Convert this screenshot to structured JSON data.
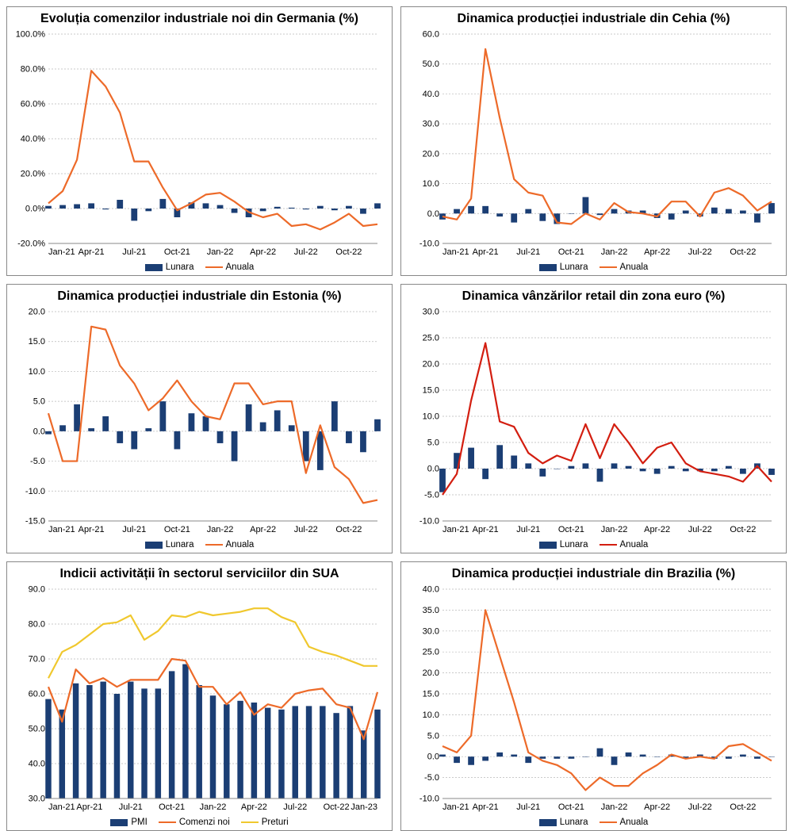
{
  "x_labels": [
    "Jan-21",
    "Apr-21",
    "Jul-21",
    "Oct-21",
    "Jan-22",
    "Apr-22",
    "Jul-22",
    "Oct-22"
  ],
  "x_labels_ext": [
    "Jan-21",
    "Apr-21",
    "Jul-21",
    "Oct-21",
    "Jan-22",
    "Apr-22",
    "Jul-22",
    "Oct-22",
    "Jan-23"
  ],
  "n_months": 24,
  "colors": {
    "bar": "#1b3e74",
    "line_orange": "#ed6a29",
    "line_red": "#d31e10",
    "line_yellow": "#f0c82e",
    "grid": "#b8b8b8",
    "border": "#777777",
    "bg": "#ffffff",
    "text": "#000000"
  },
  "charts": [
    {
      "title": "Evoluția comenzilor industriale noi din Germania (%)",
      "ylim": [
        -20,
        100
      ],
      "ytick_step": 20,
      "y_suffix": ".0%",
      "bars": {
        "label": "Lunara",
        "color_key": "bar",
        "data": [
          1.5,
          2.0,
          2.5,
          3.0,
          -0.5,
          5.0,
          -7.0,
          -1.5,
          5.5,
          -5.0,
          3.5,
          3.0,
          2.0,
          -2.5,
          -5.0,
          -1.5,
          1.0,
          0.5,
          -0.5,
          1.5,
          -1.0,
          1.5,
          -3.0,
          3.0
        ]
      },
      "lines": [
        {
          "label": "Anuala",
          "color_key": "line_orange",
          "data": [
            3,
            10,
            28,
            79,
            70,
            55,
            27,
            27,
            12,
            -1,
            3,
            8,
            9,
            4,
            -2,
            -5,
            -3,
            -10,
            -9,
            -12,
            -8,
            -3,
            -10,
            -9
          ]
        }
      ]
    },
    {
      "title": "Dinamica producției industriale din Cehia (%)",
      "ylim": [
        -10,
        60
      ],
      "ytick_step": 10,
      "y_suffix": ".0",
      "bars": {
        "label": "Lunara",
        "color_key": "bar",
        "data": [
          -2,
          1.5,
          2.5,
          2.5,
          -1,
          -3,
          1.5,
          -2.5,
          -3.5,
          0,
          5.5,
          -0.5,
          1.5,
          1,
          1,
          -1.5,
          -2,
          1,
          -1,
          2,
          1.5,
          1,
          -3,
          3.5
        ]
      },
      "lines": [
        {
          "label": "Anuala",
          "color_key": "line_orange",
          "data": [
            -1,
            -2,
            5,
            55,
            32,
            11.5,
            7,
            6,
            -3,
            -3.5,
            0,
            -2,
            3.5,
            0.5,
            0,
            -1,
            4,
            4,
            -1,
            7,
            8.5,
            6,
            1,
            4
          ]
        }
      ]
    },
    {
      "title": "Dinamica producției industriale din Estonia (%)",
      "ylim": [
        -15,
        20
      ],
      "ytick_step": 5,
      "y_suffix": ".0",
      "bars": {
        "label": "Lunara",
        "color_key": "bar",
        "data": [
          -0.5,
          1,
          4.5,
          0.5,
          2.5,
          -2,
          -3,
          0.5,
          5,
          -3,
          3,
          2.5,
          -2,
          -5,
          4.5,
          1.5,
          3.5,
          1,
          -5,
          -6.5,
          5,
          -2,
          -3.5,
          2
        ]
      },
      "lines": [
        {
          "label": "Anuala",
          "color_key": "line_orange",
          "data": [
            3,
            -5,
            -5,
            17.5,
            17,
            11,
            8,
            3.5,
            5.5,
            8.5,
            5,
            2.5,
            2,
            8,
            8,
            4.5,
            5,
            5,
            -7,
            1,
            -6,
            -8,
            -12,
            -11.5
          ]
        }
      ]
    },
    {
      "title": "Dinamica vânzărilor retail din zona euro (%)",
      "ylim": [
        -10,
        30
      ],
      "ytick_step": 5,
      "y_suffix": ".0",
      "bars": {
        "label": "Lunara",
        "color_key": "bar",
        "data": [
          -4.5,
          3,
          4,
          -2,
          4.5,
          2.5,
          1,
          -1.5,
          0,
          0.5,
          1,
          -2.5,
          1,
          0.5,
          -0.5,
          -1,
          0.5,
          -0.5,
          -0.5,
          -0.5,
          0.5,
          -1,
          1,
          -1.2
        ]
      },
      "lines": [
        {
          "label": "Anuala",
          "color_key": "line_red",
          "data": [
            -5,
            -1,
            13,
            24,
            9,
            8,
            3,
            1,
            2.5,
            1.5,
            8.5,
            2,
            8.5,
            5,
            1,
            4,
            5,
            1,
            -0.5,
            -1,
            -1.5,
            -2.5,
            0.5,
            -2.5
          ]
        }
      ]
    },
    {
      "title": "Indicii activității în sectorul serviciilor din SUA",
      "ylim": [
        30,
        90
      ],
      "ytick_step": 10,
      "y_suffix": ".0",
      "n_months": 25,
      "x_labels_key": "x_labels_ext",
      "bars": {
        "label": "PMI",
        "color_key": "bar",
        "data": [
          58.5,
          55.5,
          63,
          62.5,
          63.5,
          60,
          63.5,
          61.5,
          61.5,
          66.5,
          68.5,
          62.5,
          59.5,
          57,
          58,
          57.5,
          56,
          55.5,
          56.5,
          56.5,
          56.5,
          54.5,
          56.5,
          49.5,
          55.5
        ]
      },
      "lines": [
        {
          "label": "Comenzi noi",
          "color_key": "line_orange",
          "data": [
            62,
            52,
            67,
            63,
            64.5,
            62,
            64,
            64,
            64,
            70,
            69.5,
            62,
            62,
            57,
            60.5,
            54,
            57,
            56,
            60,
            61,
            61.5,
            57,
            56,
            47,
            60.5
          ]
        },
        {
          "label": "Preturi",
          "color_key": "line_yellow",
          "data": [
            64.5,
            72,
            74,
            77,
            80,
            80.5,
            82.5,
            75.5,
            78,
            82.5,
            82,
            83.5,
            82.5,
            83,
            83.5,
            84.5,
            84.5,
            82,
            80.5,
            73.5,
            72,
            71,
            69.5,
            68,
            68
          ]
        }
      ]
    },
    {
      "title": "Dinamica producției industriale din Brazilia (%)",
      "ylim": [
        -10,
        40
      ],
      "ytick_step": 5,
      "y_suffix": ".0",
      "bars": {
        "label": "Lunara",
        "color_key": "bar",
        "data": [
          0.5,
          -1.5,
          -2,
          -1,
          1,
          0.5,
          -1.5,
          -0.5,
          -0.5,
          -0.5,
          0,
          2,
          -2,
          1,
          0.5,
          0,
          0.5,
          -0.5,
          0.5,
          -0.5,
          -0.5,
          0.5,
          -0.5,
          0
        ]
      },
      "lines": [
        {
          "label": "Anuala",
          "color_key": "line_orange",
          "data": [
            2.5,
            1,
            5,
            35,
            24,
            13,
            1,
            -1,
            -2,
            -4,
            -8,
            -5,
            -7,
            -7,
            -4,
            -2,
            0.5,
            -0.5,
            0,
            -0.5,
            2.5,
            3,
            1,
            -1
          ]
        }
      ]
    }
  ],
  "layout": {
    "title_fontsize": 16,
    "axis_fontsize": 11,
    "legend_fontsize": 11.5,
    "bar_width_ratio": 0.45
  }
}
